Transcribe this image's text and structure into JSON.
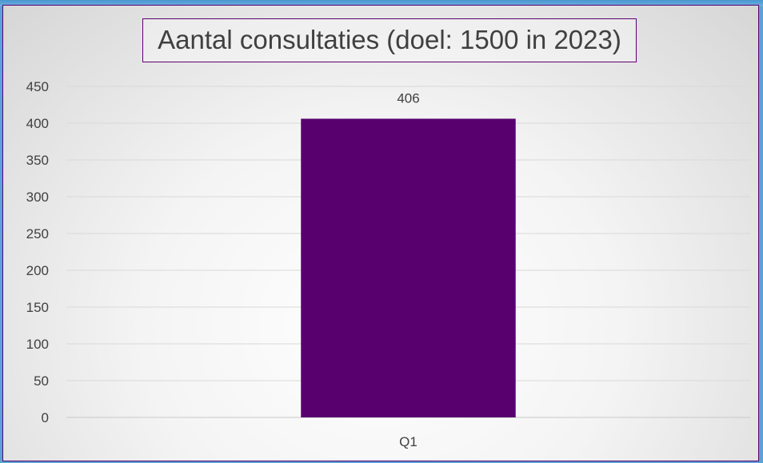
{
  "chart_data": {
    "type": "bar",
    "title": "Aantal consultaties (doel: 1500 in 2023)",
    "categories": [
      "Q1"
    ],
    "values": [
      406
    ],
    "data_labels": [
      "406"
    ],
    "ylim": [
      0,
      450
    ],
    "yticks": [
      0,
      50,
      100,
      150,
      200,
      250,
      300,
      350,
      400,
      450
    ],
    "xlabel": "",
    "ylabel": "",
    "grid": true,
    "legend": "none",
    "bar_color": "#57006e"
  }
}
